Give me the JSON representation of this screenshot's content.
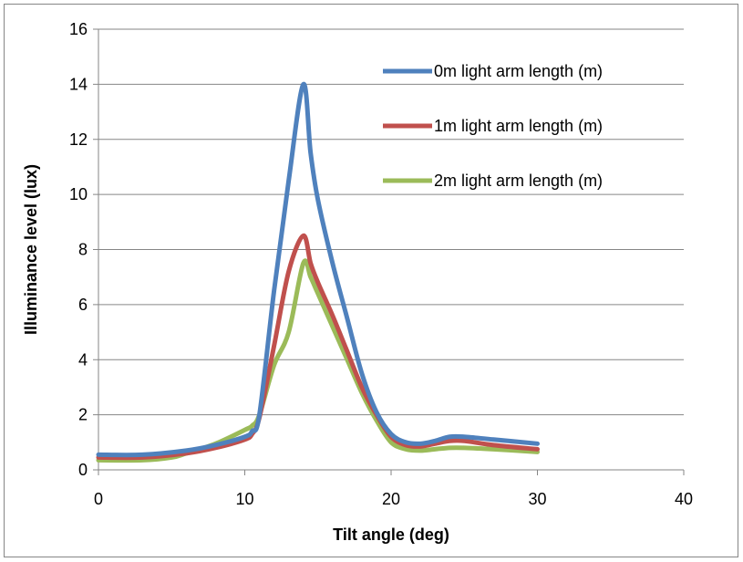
{
  "chart_data": {
    "type": "line",
    "title": "",
    "xlabel": "Tilt  angle (deg)",
    "ylabel": "Illuminance level (lux)",
    "xlim": [
      0,
      40
    ],
    "ylim": [
      0,
      16
    ],
    "x_ticks": [
      0,
      10,
      20,
      30,
      40
    ],
    "y_ticks": [
      0,
      2,
      4,
      6,
      8,
      10,
      12,
      14,
      16
    ],
    "grid": "horizontal",
    "legend": "top-right",
    "series": [
      {
        "name": "0m light arm length (m)",
        "color": "#4F81BD",
        "points": [
          [
            0,
            0.55
          ],
          [
            3,
            0.55
          ],
          [
            6,
            0.7
          ],
          [
            8,
            0.9
          ],
          [
            10,
            1.2
          ],
          [
            10.5,
            1.4
          ],
          [
            11,
            2.0
          ],
          [
            12,
            6.5
          ],
          [
            13,
            10.5
          ],
          [
            14,
            14.0
          ],
          [
            14.5,
            11.5
          ],
          [
            15,
            9.8
          ],
          [
            16,
            7.5
          ],
          [
            17,
            5.5
          ],
          [
            18,
            3.5
          ],
          [
            19,
            2.1
          ],
          [
            20,
            1.3
          ],
          [
            21,
            1.0
          ],
          [
            22,
            0.95
          ],
          [
            23,
            1.05
          ],
          [
            24,
            1.2
          ],
          [
            25,
            1.2
          ],
          [
            27,
            1.1
          ],
          [
            30,
            0.95
          ]
        ]
      },
      {
        "name": "1m light arm length (m)",
        "color": "#C0504D",
        "points": [
          [
            0,
            0.45
          ],
          [
            3,
            0.45
          ],
          [
            6,
            0.6
          ],
          [
            8,
            0.8
          ],
          [
            10,
            1.1
          ],
          [
            10.5,
            1.3
          ],
          [
            11,
            1.9
          ],
          [
            12,
            4.5
          ],
          [
            13,
            7.2
          ],
          [
            14,
            8.5
          ],
          [
            14.5,
            7.5
          ],
          [
            15,
            6.8
          ],
          [
            16,
            5.6
          ],
          [
            17,
            4.3
          ],
          [
            18,
            3.0
          ],
          [
            19,
            2.0
          ],
          [
            20,
            1.2
          ],
          [
            21,
            0.9
          ],
          [
            22,
            0.85
          ],
          [
            23,
            0.95
          ],
          [
            24,
            1.05
          ],
          [
            25,
            1.05
          ],
          [
            27,
            0.9
          ],
          [
            30,
            0.75
          ]
        ]
      },
      {
        "name": "2m light arm length (m)",
        "color": "#9BBB59",
        "points": [
          [
            0,
            0.35
          ],
          [
            3,
            0.35
          ],
          [
            5,
            0.45
          ],
          [
            6,
            0.6
          ],
          [
            8,
            0.95
          ],
          [
            10,
            1.45
          ],
          [
            10.5,
            1.6
          ],
          [
            11,
            2.0
          ],
          [
            12,
            3.8
          ],
          [
            13,
            5.0
          ],
          [
            14,
            7.5
          ],
          [
            14.5,
            7.0
          ],
          [
            15,
            6.4
          ],
          [
            16,
            5.2
          ],
          [
            17,
            4.0
          ],
          [
            18,
            2.8
          ],
          [
            19,
            1.8
          ],
          [
            20,
            1.0
          ],
          [
            21,
            0.75
          ],
          [
            22,
            0.7
          ],
          [
            23,
            0.75
          ],
          [
            24,
            0.8
          ],
          [
            25,
            0.8
          ],
          [
            27,
            0.75
          ],
          [
            30,
            0.65
          ]
        ]
      }
    ]
  }
}
